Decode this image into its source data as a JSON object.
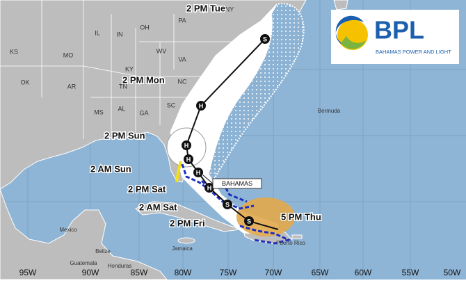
{
  "track_labels": [
    "2 PM Tue",
    "2 PM Mon",
    "2 PM Sun",
    "2 AM Sun",
    "2 PM Sat",
    "2 AM Sat",
    "2 PM Fri",
    "5 PM Thu"
  ],
  "callout": "BAHAMAS",
  "points": [
    "S",
    "H",
    "H",
    "H",
    "H",
    "H",
    "S",
    "S"
  ],
  "longitudes": [
    "95W",
    "90W",
    "85W",
    "80W",
    "75W",
    "70W",
    "65W",
    "60W",
    "55W",
    "50W"
  ],
  "states": [
    "KS",
    "MO",
    "IL",
    "IN",
    "OH",
    "PA",
    "NY",
    "KY",
    "WV",
    "VA",
    "OK",
    "AR",
    "TN",
    "NC",
    "MS",
    "AL",
    "GA",
    "SC"
  ],
  "places": [
    "Bermuda",
    "Mexico",
    "Belize",
    "Guatemala",
    "Honduras",
    "Jamaica",
    "Puerto Rico"
  ],
  "logo": {
    "title": "BPL",
    "subtitle": "BAHAMAS POWER AND LIGHT"
  }
}
